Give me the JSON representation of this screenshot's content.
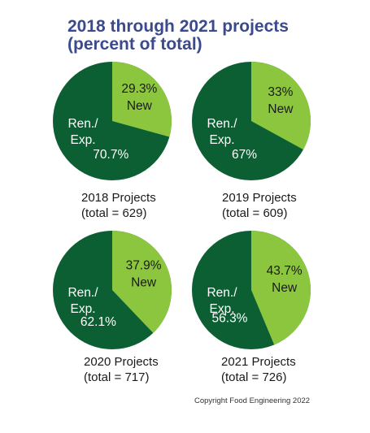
{
  "title": {
    "line1": "2018 through 2021 projects",
    "line2": "(percent of total)"
  },
  "colors": {
    "renovation": "#0b5f33",
    "new": "#8cc63f",
    "title": "#3a4a8c",
    "label_on_dark": "#ffffff",
    "label_on_light": "#1a1a1a"
  },
  "chart_data": [
    {
      "type": "pie",
      "title": "2018 Projects",
      "subtitle": "(total = 629)",
      "slices": [
        {
          "label": "New",
          "value": 29.3,
          "value_label": "29.3%"
        },
        {
          "label": "Ren./ Exp.",
          "value": 70.7,
          "value_label": "70.7%"
        }
      ]
    },
    {
      "type": "pie",
      "title": "2019 Projects",
      "subtitle": "(total = 609)",
      "slices": [
        {
          "label": "New",
          "value": 33,
          "value_label": "33%"
        },
        {
          "label": "Ren./ Exp.",
          "value": 67,
          "value_label": "67%"
        }
      ]
    },
    {
      "type": "pie",
      "title": "2020 Projects",
      "subtitle": "(total = 717)",
      "slices": [
        {
          "label": "New",
          "value": 37.9,
          "value_label": "37.9%"
        },
        {
          "label": "Ren./ Exp.",
          "value": 62.1,
          "value_label": "62.1%"
        }
      ]
    },
    {
      "type": "pie",
      "title": "2021 Projects",
      "subtitle": "(total = 726)",
      "slices": [
        {
          "label": "New",
          "value": 43.7,
          "value_label": "43.7%"
        },
        {
          "label": "Ren./ Exp.",
          "value": 56.3,
          "value_label": "56.3%"
        }
      ]
    }
  ],
  "copyright": "Copyright Food Engineering 2022"
}
